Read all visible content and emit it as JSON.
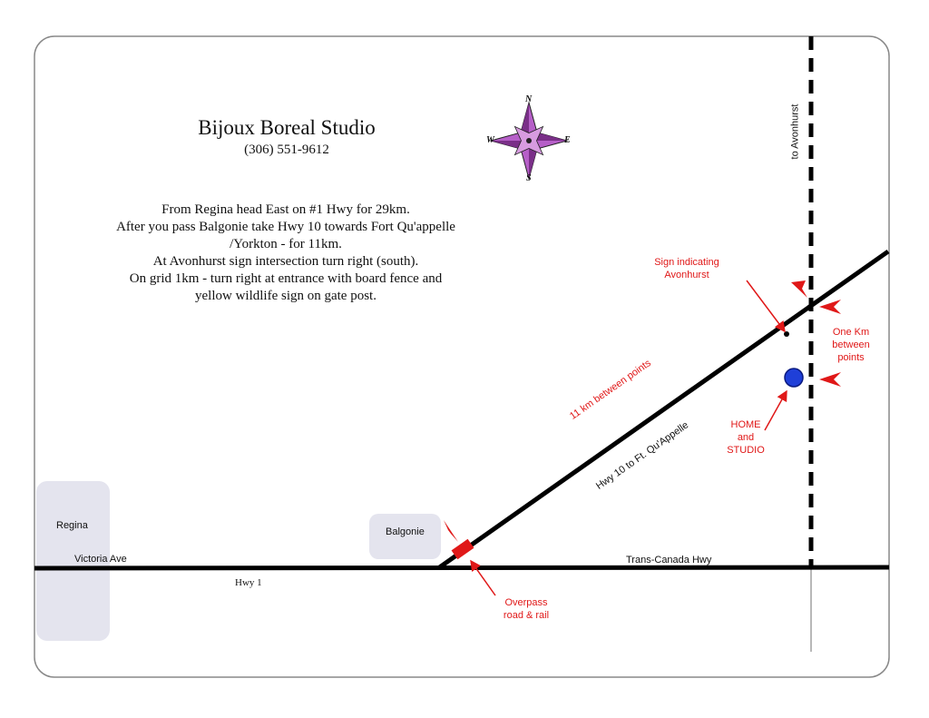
{
  "title": "Bijoux Boreal Studio",
  "phone": "(306) 551-9612",
  "directions": [
    "From Regina head East on #1 Hwy for 29km.",
    "After you pass Balgonie take Hwy 10 towards Fort Qu'appelle",
    "/Yorkton - for 11km.",
    "At Avonhurst sign intersection turn right (south).",
    "On grid 1km - turn right at entrance with board fence and",
    "yellow wildlife sign on gate post."
  ],
  "compass": {
    "n": "N",
    "s": "S",
    "e": "E",
    "w": "W"
  },
  "labels": {
    "to_avonhurst": "to Avonhurst",
    "sign_line1": "Sign indicating",
    "sign_line2": "Avonhurst",
    "one_km_line1": "One Km",
    "one_km_line2": "between",
    "one_km_line3": "points",
    "home_line1": "HOME",
    "home_line2": "and",
    "home_line3": "STUDIO",
    "eleven_km": "11 km between points",
    "hwy10": "Hwy 10 to Ft. Qu'Appelle",
    "regina": "Regina",
    "victoria_ave": "Victoria Ave",
    "hwy1": "Hwy 1",
    "balgonie": "Balgonie",
    "trans_canada": "Trans-Canada Hwy",
    "overpass_line1": "Overpass",
    "overpass_line2": "road & rail"
  },
  "colors": {
    "annotation": "#e01818",
    "home_marker": "#1f3fd8",
    "town_box": "#e4e4ee",
    "compass": "#b65fc8"
  }
}
